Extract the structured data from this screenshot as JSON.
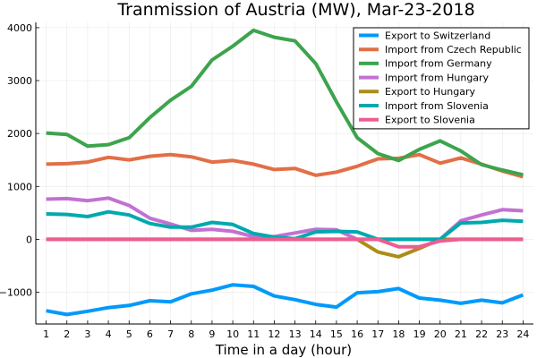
{
  "chart_data": {
    "type": "line",
    "title": "Tranmission of Austria (MW), Mar-23-2018",
    "xlabel": "Time in a day (hour)",
    "ylabel": "",
    "x": [
      1,
      2,
      3,
      4,
      5,
      6,
      7,
      8,
      9,
      10,
      11,
      12,
      13,
      14,
      15,
      16,
      17,
      18,
      19,
      20,
      21,
      22,
      23,
      24
    ],
    "xlim": [
      0.5,
      24.5
    ],
    "ylim": [
      -1600,
      4100
    ],
    "yticks": [
      -1000,
      0,
      1000,
      2000,
      3000,
      4000
    ],
    "grid": true,
    "legend_position": "top-right",
    "series": [
      {
        "name": "Export to Switzerland",
        "color": "#009AFA",
        "values": [
          -1350,
          -1420,
          -1360,
          -1290,
          -1250,
          -1160,
          -1180,
          -1030,
          -960,
          -860,
          -890,
          -1070,
          -1140,
          -1230,
          -1280,
          -1010,
          -990,
          -930,
          -1110,
          -1150,
          -1210,
          -1150,
          -1200,
          -1050
        ]
      },
      {
        "name": "Import from Czech Republic",
        "color": "#E26F46",
        "values": [
          1420,
          1430,
          1460,
          1550,
          1500,
          1570,
          1600,
          1560,
          1460,
          1490,
          1420,
          1320,
          1340,
          1210,
          1270,
          1380,
          1520,
          1530,
          1600,
          1440,
          1540,
          1420,
          1290,
          1180
        ]
      },
      {
        "name": "Import from Germany",
        "color": "#3DA44D",
        "values": [
          2010,
          1980,
          1760,
          1790,
          1920,
          2300,
          2630,
          2890,
          3390,
          3650,
          3950,
          3820,
          3750,
          3320,
          2600,
          1920,
          1620,
          1490,
          1700,
          1860,
          1670,
          1410,
          1310,
          1220
        ]
      },
      {
        "name": "Import from Hungary",
        "color": "#C271D2",
        "values": [
          760,
          770,
          730,
          780,
          640,
          400,
          290,
          170,
          190,
          150,
          50,
          50,
          120,
          190,
          180,
          0,
          0,
          0,
          0,
          0,
          350,
          460,
          560,
          540
        ]
      },
      {
        "name": "Export to Hungary",
        "color": "#AC8D18",
        "values": [
          0,
          0,
          0,
          0,
          0,
          0,
          0,
          0,
          0,
          0,
          0,
          0,
          0,
          0,
          0,
          0,
          -240,
          -330,
          -170,
          0,
          0,
          0,
          0,
          0
        ]
      },
      {
        "name": "Import from Slovenia",
        "color": "#00A9AD",
        "values": [
          480,
          470,
          430,
          520,
          460,
          300,
          230,
          230,
          320,
          280,
          110,
          40,
          10,
          140,
          150,
          140,
          0,
          0,
          0,
          0,
          310,
          320,
          360,
          340
        ]
      },
      {
        "name": "Export to Slovenia",
        "color": "#ED5D92",
        "values": [
          0,
          0,
          0,
          0,
          0,
          0,
          0,
          0,
          0,
          0,
          0,
          0,
          0,
          0,
          0,
          0,
          0,
          -140,
          -140,
          -30,
          0,
          0,
          0,
          0
        ]
      }
    ]
  }
}
